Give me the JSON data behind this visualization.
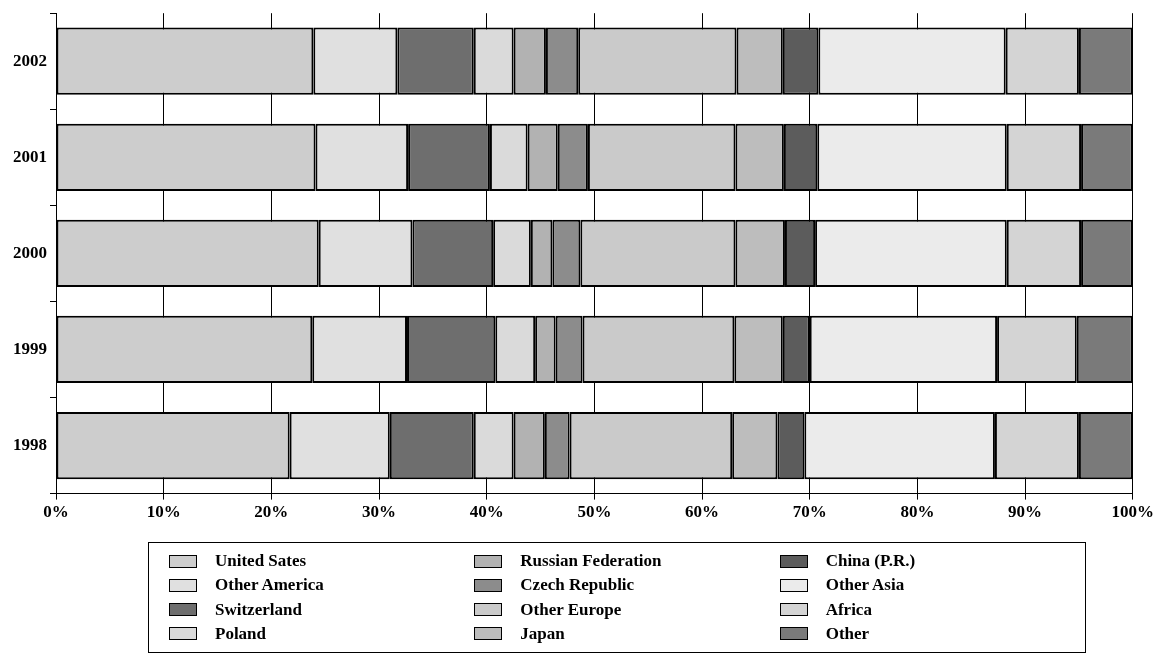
{
  "chart_data": {
    "type": "bar",
    "orientation": "horizontal",
    "stacked": true,
    "categories": [
      "2002",
      "2001",
      "2000",
      "1999",
      "1998"
    ],
    "series": [
      {
        "name": "United Sates",
        "color": "#cdcdcd",
        "values": [
          23.9,
          24.1,
          24.4,
          23.8,
          21.7
        ]
      },
      {
        "name": "Other America",
        "color": "#e0e0e0",
        "values": [
          7.8,
          8.6,
          8.7,
          8.8,
          9.3
        ]
      },
      {
        "name": "Switzerland",
        "color": "#6e6e6e",
        "values": [
          7.1,
          7.6,
          7.5,
          8.2,
          7.8
        ]
      },
      {
        "name": "Poland",
        "color": "#dadada",
        "values": [
          3.7,
          3.5,
          3.5,
          3.7,
          3.7
        ]
      },
      {
        "name": "Russian Federation",
        "color": "#b2b2b2",
        "values": [
          3.0,
          2.8,
          2.0,
          1.9,
          2.9
        ]
      },
      {
        "name": "Czech Republic",
        "color": "#8c8c8c",
        "values": [
          3.0,
          2.8,
          2.6,
          2.5,
          2.3
        ]
      },
      {
        "name": "Other Europe",
        "color": "#cacaca",
        "values": [
          14.7,
          13.7,
          14.4,
          14.1,
          15.1
        ]
      },
      {
        "name": "Japan",
        "color": "#bdbdbd",
        "values": [
          4.3,
          4.5,
          4.6,
          4.5,
          4.2
        ]
      },
      {
        "name": "China (P.R.)",
        "color": "#5c5c5c",
        "values": [
          3.3,
          3.1,
          2.8,
          2.5,
          2.5
        ]
      },
      {
        "name": "Other Asia",
        "color": "#ebebeb",
        "values": [
          17.4,
          17.6,
          17.8,
          17.4,
          17.7
        ]
      },
      {
        "name": "Africa",
        "color": "#d4d4d4",
        "values": [
          6.8,
          6.9,
          6.9,
          7.4,
          7.8
        ]
      },
      {
        "name": "Other",
        "color": "#7a7a7a",
        "values": [
          5.0,
          4.8,
          4.8,
          5.2,
          5.0
        ]
      }
    ],
    "xlim": [
      0,
      100
    ],
    "xticks": [
      {
        "value": 0,
        "label": "0%"
      },
      {
        "value": 10,
        "label": "10%"
      },
      {
        "value": 20,
        "label": "20%"
      },
      {
        "value": 30,
        "label": "30%"
      },
      {
        "value": 40,
        "label": "40%"
      },
      {
        "value": 50,
        "label": "50%"
      },
      {
        "value": 60,
        "label": "60%"
      },
      {
        "value": 70,
        "label": "70%"
      },
      {
        "value": 80,
        "label": "80%"
      },
      {
        "value": 90,
        "label": "90%"
      },
      {
        "value": 100,
        "label": "100%"
      }
    ],
    "grid": "x",
    "legend": "bottom"
  }
}
